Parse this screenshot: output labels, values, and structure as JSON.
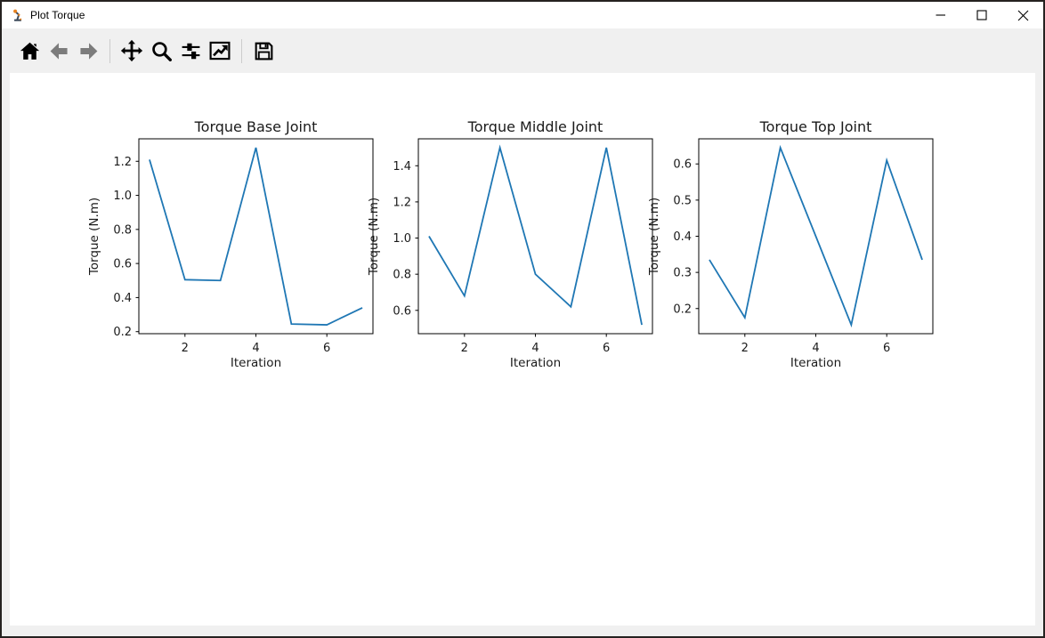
{
  "window": {
    "title": "Plot Torque",
    "controls": [
      {
        "name": "minimize"
      },
      {
        "name": "maximize"
      },
      {
        "name": "close"
      }
    ]
  },
  "toolbar": {
    "buttons": [
      {
        "icon": "home-icon",
        "enabled": true
      },
      {
        "icon": "back-icon",
        "enabled": false
      },
      {
        "icon": "forward-icon",
        "enabled": false
      },
      {
        "icon": "pan-icon",
        "enabled": true
      },
      {
        "icon": "zoom-icon",
        "enabled": true
      },
      {
        "icon": "configure-subplots-icon",
        "enabled": true
      },
      {
        "icon": "edit-parameters-icon",
        "enabled": true
      },
      {
        "icon": "save-icon",
        "enabled": true
      }
    ]
  },
  "chart_data": [
    {
      "type": "line",
      "title": "Torque Base Joint",
      "xlabel": "Iteration",
      "ylabel": "Torque (N.m)",
      "x": [
        1,
        2,
        3,
        4,
        5,
        6,
        7
      ],
      "y": [
        1.21,
        0.505,
        0.5,
        1.28,
        0.245,
        0.24,
        0.34
      ],
      "xticks": [
        2,
        4,
        6
      ],
      "xtick_labels": [
        "2",
        "4",
        "6"
      ],
      "yticks": [
        0.2,
        0.4,
        0.6,
        0.8,
        1.0,
        1.2
      ],
      "ytick_labels": [
        "0.2",
        "0.4",
        "0.6",
        "0.8",
        "1.0",
        "1.2"
      ],
      "xlim": [
        0.7,
        7.3
      ],
      "ylim": [
        0.188,
        1.332
      ],
      "grid": false,
      "legend": null,
      "line_color": "#1f77b4"
    },
    {
      "type": "line",
      "title": "Torque Middle Joint",
      "xlabel": "Iteration",
      "ylabel": "Torque (N.m)",
      "x": [
        1,
        2,
        3,
        4,
        5,
        6,
        7
      ],
      "y": [
        1.01,
        0.68,
        1.5,
        0.8,
        0.62,
        1.5,
        0.52
      ],
      "xticks": [
        2,
        4,
        6
      ],
      "xtick_labels": [
        "2",
        "4",
        "6"
      ],
      "yticks": [
        0.6,
        0.8,
        1.0,
        1.2,
        1.4
      ],
      "ytick_labels": [
        "0.6",
        "0.8",
        "1.0",
        "1.2",
        "1.4"
      ],
      "xlim": [
        0.7,
        7.3
      ],
      "ylim": [
        0.471,
        1.549
      ],
      "grid": false,
      "legend": null,
      "line_color": "#1f77b4"
    },
    {
      "type": "line",
      "title": "Torque Top Joint",
      "xlabel": "Iteration",
      "ylabel": "Torque (N.m)",
      "x": [
        1,
        2,
        3,
        4,
        5,
        6,
        7
      ],
      "y": [
        0.335,
        0.175,
        0.645,
        0.4,
        0.155,
        0.61,
        0.335
      ],
      "xticks": [
        2,
        4,
        6
      ],
      "xtick_labels": [
        "2",
        "4",
        "6"
      ],
      "yticks": [
        0.2,
        0.3,
        0.4,
        0.5,
        0.6
      ],
      "ytick_labels": [
        "0.2",
        "0.3",
        "0.4",
        "0.5",
        "0.6"
      ],
      "xlim": [
        0.7,
        7.3
      ],
      "ylim": [
        0.1305,
        0.6695
      ],
      "grid": false,
      "legend": null,
      "line_color": "#1f77b4"
    }
  ]
}
